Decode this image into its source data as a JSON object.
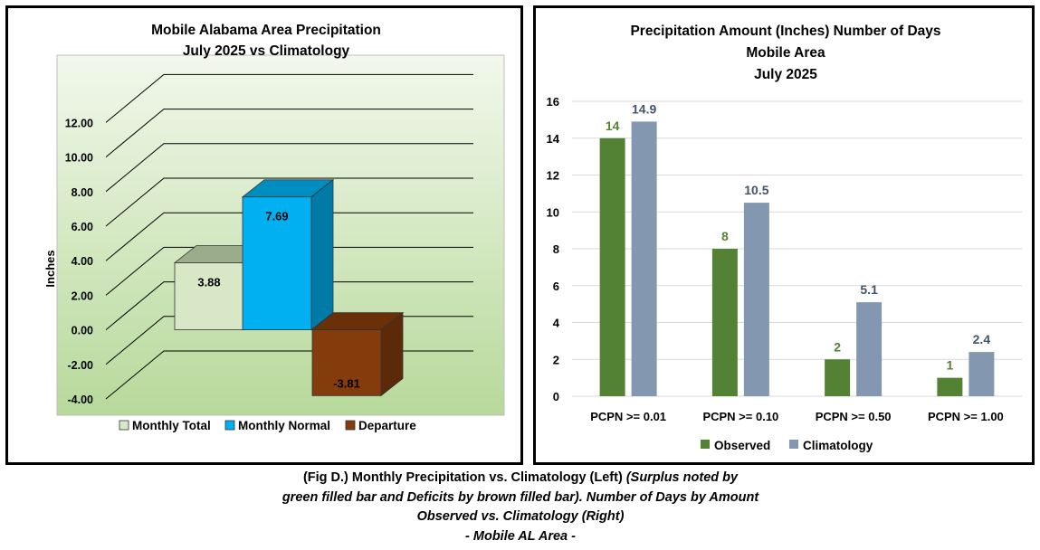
{
  "left_chart": {
    "title_lines": [
      "Mobile Alabama Area Precipitation",
      "July 2025 vs Climatology"
    ],
    "ylabel": "Inches",
    "y_ticks": [
      "12.00",
      "10.00",
      "8.00",
      "6.00",
      "4.00",
      "2.00",
      "0.00",
      "-2.00",
      "-4.00"
    ],
    "legend": [
      "Monthly Total",
      "Monthly Normal",
      "Departure"
    ],
    "colors": {
      "total": "#d8e8c6",
      "normal": "#00b0f0",
      "departure": "#843c0c",
      "plot_bg_top": "#f2f8ec",
      "plot_bg_bottom": "#b7d99a"
    }
  },
  "right_chart": {
    "title_lines": [
      "Precipitation Amount (Inches) Number of Days",
      "Mobile Area",
      "July 2025"
    ],
    "colors": {
      "observed": "#548235",
      "climatology": "#8497b0",
      "observed_label": "#548235",
      "climatology_label": "#44546a"
    }
  },
  "chart_data": [
    {
      "type": "bar",
      "title": "Mobile Alabama Area Precipitation July 2025 vs Climatology",
      "ylabel": "Inches",
      "ylim": [
        -4,
        12
      ],
      "grid": true,
      "legend_position": "bottom",
      "categories": [
        "Monthly Total",
        "Monthly Normal",
        "Departure"
      ],
      "values": [
        3.88,
        7.69,
        -3.81
      ],
      "labels": [
        "3.88",
        "7.69",
        "-3.81"
      ]
    },
    {
      "type": "bar",
      "title": "Precipitation Amount (Inches) Number of Days Mobile Area July 2025",
      "ylim": [
        0,
        16
      ],
      "y_ticks": [
        "0",
        "2",
        "4",
        "6",
        "8",
        "10",
        "12",
        "14",
        "16"
      ],
      "grid": true,
      "legend_position": "bottom",
      "categories": [
        "PCPN >= 0.01",
        "PCPN >= 0.10",
        "PCPN >= 0.50",
        "PCPN >= 1.00"
      ],
      "series": [
        {
          "name": "Observed",
          "values": [
            14,
            8,
            2,
            1
          ],
          "labels": [
            "14",
            "8",
            "2",
            "1"
          ]
        },
        {
          "name": "Climatology",
          "values": [
            14.9,
            10.5,
            5.1,
            2.4
          ],
          "labels": [
            "14.9",
            "10.5",
            "5.1",
            "2.4"
          ]
        }
      ]
    }
  ],
  "caption": {
    "line1_bold": "(Fig D.) Monthly Precipitation vs. Climatology (Left) ",
    "line1_italic": "(Surplus noted by",
    "line2": "green filled bar and Deficits by brown filled bar). Number of Days by Amount",
    "line3": "Observed vs. Climatology (Right)",
    "line4": "- Mobile AL Area -"
  }
}
